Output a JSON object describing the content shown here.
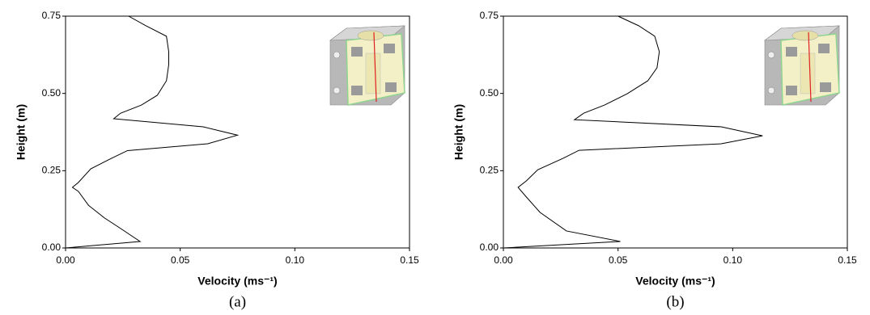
{
  "chart_data": [
    {
      "type": "line",
      "caption": "(a)",
      "x_label": "Velocity (ms⁻¹)",
      "y_label": "Height (m)",
      "color": "#000000",
      "x": [
        0,
        0.0325,
        0.024,
        0.017,
        0.01,
        0.0056,
        0.003,
        0.0056,
        0.011,
        0.02,
        0.027,
        0.062,
        0.075,
        0.06,
        0.021,
        0.024,
        0.033,
        0.04,
        0.044,
        0.045,
        0.045,
        0.044,
        0.035,
        0.0275
      ],
      "values": [
        0,
        0.021,
        0.063,
        0.097,
        0.138,
        0.183,
        0.196,
        0.212,
        0.256,
        0.29,
        0.315,
        0.337,
        0.365,
        0.392,
        0.418,
        0.436,
        0.462,
        0.494,
        0.541,
        0.593,
        0.635,
        0.685,
        0.719,
        0.75
      ],
      "xlim": [
        0,
        0.15
      ],
      "ylim": [
        0,
        0.75
      ],
      "xticks": [
        {
          "value": 0,
          "label": "0.00"
        },
        {
          "value": 0.05,
          "label": "0.05"
        },
        {
          "value": 0.1,
          "label": "0.10"
        },
        {
          "value": 0.15,
          "label": "0.15"
        }
      ],
      "yticks": [
        {
          "value": 0,
          "label": "0.00"
        },
        {
          "value": 0.25,
          "label": "0.25"
        },
        {
          "value": 0.5,
          "label": "0.50"
        },
        {
          "value": 0.75,
          "label": "0.75"
        }
      ],
      "grid": false
    },
    {
      "type": "line",
      "caption": "(b)",
      "x_label": "Velocity (ms⁻¹)",
      "y_label": "Height (m)",
      "color": "#000000",
      "x": [
        0,
        0.051,
        0.0275,
        0.016,
        0.01,
        0.0064,
        0.01,
        0.015,
        0.026,
        0.033,
        0.095,
        0.113,
        0.095,
        0.031,
        0.035,
        0.044,
        0.054,
        0.063,
        0.067,
        0.068,
        0.066,
        0.059,
        0.05
      ],
      "values": [
        0,
        0.021,
        0.055,
        0.115,
        0.165,
        0.196,
        0.217,
        0.253,
        0.29,
        0.316,
        0.337,
        0.363,
        0.392,
        0.415,
        0.436,
        0.462,
        0.499,
        0.541,
        0.583,
        0.635,
        0.685,
        0.719,
        0.75
      ],
      "xlim": [
        0,
        0.15
      ],
      "ylim": [
        0,
        0.75
      ],
      "xticks": [
        {
          "value": 0,
          "label": "0.00"
        },
        {
          "value": 0.05,
          "label": "0.05"
        },
        {
          "value": 0.1,
          "label": "0.10"
        },
        {
          "value": 0.15,
          "label": "0.15"
        }
      ],
      "yticks": [
        {
          "value": 0,
          "label": "0.00"
        },
        {
          "value": 0.25,
          "label": "0.25"
        },
        {
          "value": 0.5,
          "label": "0.50"
        },
        {
          "value": 0.75,
          "label": "0.75"
        }
      ],
      "grid": false
    }
  ]
}
